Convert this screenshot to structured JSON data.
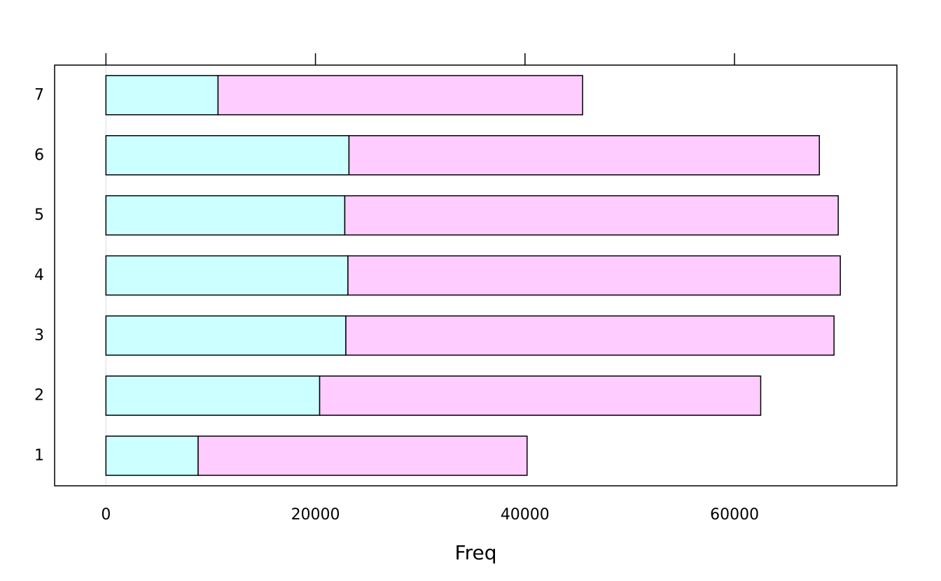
{
  "chart_data": {
    "type": "bar",
    "orientation": "horizontal",
    "stacked": true,
    "title": "",
    "xlabel": "Freq",
    "ylabel": "",
    "categories": [
      "1",
      "2",
      "3",
      "4",
      "5",
      "6",
      "7"
    ],
    "series": [
      {
        "values": [
          8800,
          20400,
          22900,
          23100,
          22800,
          23200,
          10700
        ],
        "color": "#ccffff"
      },
      {
        "values": [
          31400,
          42100,
          46600,
          47000,
          47100,
          44900,
          34800
        ],
        "color": "#ffccff"
      }
    ],
    "xlim": [
      -4900,
      75500
    ],
    "xticks": [
      0,
      20000,
      40000,
      60000
    ],
    "xtick_labels": [
      "0",
      "20000",
      "40000",
      "60000"
    ],
    "reference_line_at": 0,
    "reference_line_color": "#e6e6e6",
    "grid": false,
    "legend": "none",
    "bar_outline_color": "#000000"
  }
}
